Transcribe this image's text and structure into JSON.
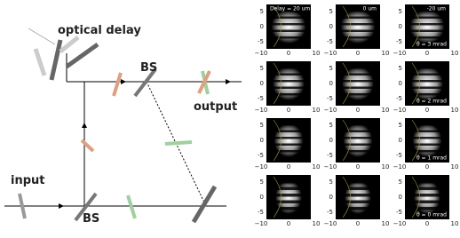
{
  "diagram": {
    "labels": {
      "optical_delay": "optical delay",
      "bs_top": "BS",
      "output": "output",
      "input": "input",
      "bs_bottom": "BS"
    }
  },
  "panels": {
    "columns": [
      "Delay = 20 um",
      "0 um",
      "-20 um"
    ],
    "rows": [
      "θ = 3 mrad",
      "θ = 2 mrad",
      "θ = 1 mrad",
      "θ = 0 mrad"
    ],
    "xticks": [
      "−10",
      "0",
      "10"
    ],
    "yticks": [
      "5",
      "0",
      "-5"
    ]
  }
}
